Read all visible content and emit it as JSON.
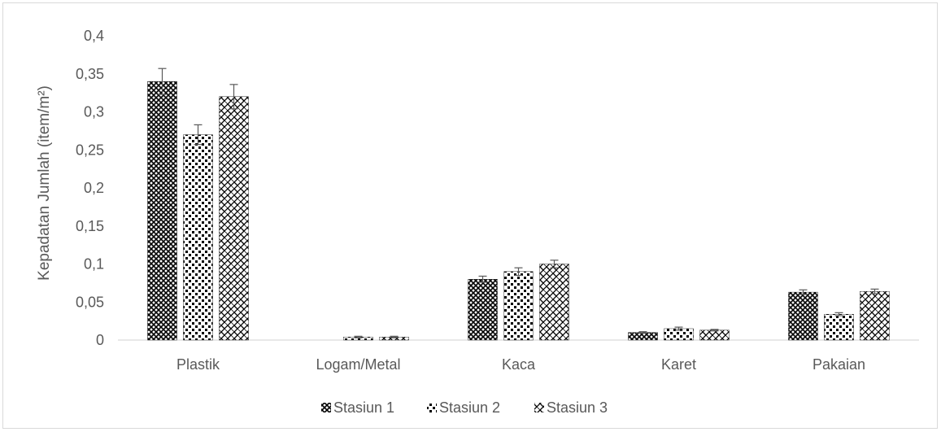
{
  "chart_data": {
    "type": "bar",
    "title": "",
    "xlabel": "",
    "ylabel": "Kepadatan Jumlah (item/m²)",
    "ylim": [
      0,
      0.4
    ],
    "yticks": [
      "0",
      "0,05",
      "0,1",
      "0,15",
      "0,2",
      "0,25",
      "0,3",
      "0,35",
      "0,4"
    ],
    "ytick_values": [
      0,
      0.05,
      0.1,
      0.15,
      0.2,
      0.25,
      0.3,
      0.35,
      0.4
    ],
    "categories": [
      "Plastik",
      "Logam/Metal",
      "Kaca",
      "Karet",
      "Pakaian"
    ],
    "series": [
      {
        "name": "Stasiun 1",
        "pattern": "crosshatch",
        "values": [
          0.34,
          0,
          0.08,
          0.01,
          0.063
        ],
        "errors": [
          0.017,
          0,
          0.004,
          0.001,
          0.003
        ]
      },
      {
        "name": "Stasiun 2",
        "pattern": "dots",
        "values": [
          0.27,
          0.004,
          0.09,
          0.015,
          0.034
        ],
        "errors": [
          0.013,
          0.001,
          0.005,
          0.002,
          0.002
        ]
      },
      {
        "name": "Stasiun 3",
        "pattern": "weave",
        "values": [
          0.32,
          0.004,
          0.1,
          0.013,
          0.064
        ],
        "errors": [
          0.016,
          0.001,
          0.005,
          0.001,
          0.003
        ]
      }
    ],
    "grid": false,
    "legend_position": "bottom",
    "colors": {
      "fill": "#000000",
      "background": "#ffffff",
      "text": "#595959",
      "axis": "#d9d9d9",
      "error_bar": "#595959"
    }
  }
}
